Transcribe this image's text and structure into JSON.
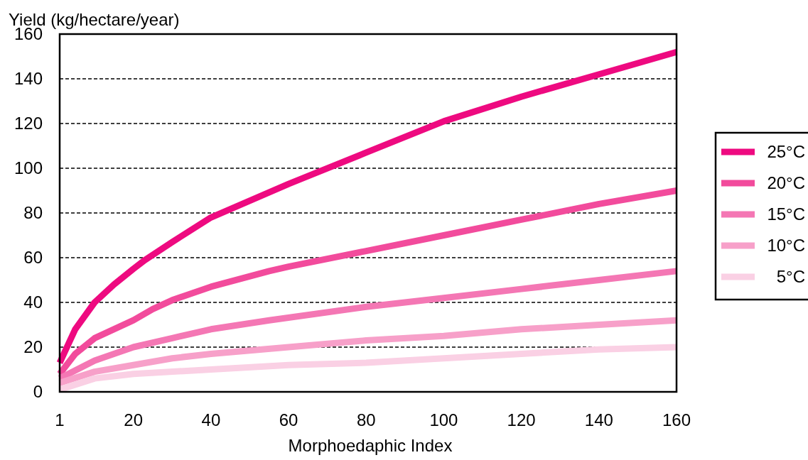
{
  "chart_data": {
    "type": "line",
    "xlabel": "Morphoedaphic Index",
    "ylabel": "Yield (kg/hectare/year)",
    "xlim": [
      1,
      160
    ],
    "xticks": [
      1,
      20,
      40,
      60,
      80,
      100,
      120,
      140,
      160
    ],
    "ylim": [
      0,
      160
    ],
    "yticks": [
      0,
      20,
      40,
      60,
      80,
      100,
      120,
      140,
      160
    ],
    "grid": "y",
    "legend": "right",
    "series": [
      {
        "name": "25°C",
        "color": "#ee0a80",
        "x": [
          1,
          5,
          10,
          15,
          20,
          23,
          30,
          40,
          60,
          80,
          100,
          120,
          140,
          160
        ],
        "values": [
          13,
          28,
          40,
          48,
          55,
          59,
          67,
          78,
          93,
          107,
          121,
          132,
          142,
          152
        ]
      },
      {
        "name": "20°C",
        "color": "#f24b9c",
        "x": [
          1,
          5,
          10,
          20,
          25,
          30,
          40,
          55,
          60,
          80,
          100,
          120,
          140,
          160
        ],
        "values": [
          8,
          17,
          24,
          32,
          37,
          41,
          47,
          54,
          56,
          63,
          70,
          77,
          84,
          90
        ]
      },
      {
        "name": "15°C",
        "color": "#f477b4",
        "x": [
          1,
          10,
          20,
          30,
          40,
          55,
          80,
          100,
          120,
          140,
          160
        ],
        "values": [
          6,
          14,
          20,
          24,
          28,
          32,
          38,
          42,
          46,
          50,
          54
        ]
      },
      {
        "name": "10°C",
        "color": "#f7a0c9",
        "x": [
          1,
          10,
          20,
          30,
          40,
          60,
          80,
          100,
          120,
          140,
          160
        ],
        "values": [
          4,
          9,
          12,
          15,
          17,
          20,
          23,
          25,
          28,
          30,
          32
        ]
      },
      {
        "name": " 5°C",
        "color": "#fad0e4",
        "x": [
          1,
          10,
          20,
          40,
          60,
          80,
          100,
          120,
          140,
          160
        ],
        "values": [
          1,
          6,
          8,
          10,
          12,
          13,
          15,
          17,
          19,
          20
        ]
      }
    ]
  }
}
